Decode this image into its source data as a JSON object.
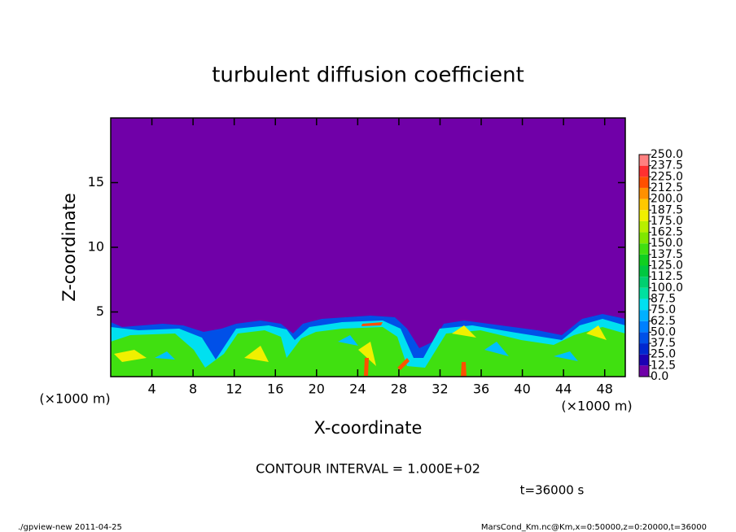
{
  "chart_data": {
    "type": "contour",
    "title": "turbulent diffusion coefficient",
    "x_label": "X-coordinate",
    "y_label": "Z-coordinate",
    "x_unit": "(×1000 m)",
    "y_unit": "(×1000 m)",
    "xlim": [
      0,
      50
    ],
    "xticks": [
      4,
      8,
      12,
      16,
      20,
      24,
      28,
      32,
      36,
      40,
      44,
      48
    ],
    "ylim": [
      0,
      20
    ],
    "yticks": [
      5,
      10,
      15
    ],
    "contour_interval": "CONTOUR INTERVAL = 1.000E+02",
    "time_label": "t=36000 s",
    "footer_left": "./gpview-new  2011-04-25",
    "footer_right": "MarsCond_Km.nc@Km,x=0:50000,z=0:20000,t=36000",
    "colorbar": {
      "levels": [
        {
          "value": 0,
          "label": "0.0"
        },
        {
          "value": 12.5,
          "label": "12.5"
        },
        {
          "value": 25,
          "label": "25.0"
        },
        {
          "value": 37.5,
          "label": "37.5"
        },
        {
          "value": 50,
          "label": "50.0"
        },
        {
          "value": 62.5,
          "label": "62.5"
        },
        {
          "value": 75,
          "label": "75.0"
        },
        {
          "value": 87.5,
          "label": "87.5"
        },
        {
          "value": 100,
          "label": "100.0"
        },
        {
          "value": 112.5,
          "label": "112.5"
        },
        {
          "value": 125,
          "label": "125.0"
        },
        {
          "value": 137.5,
          "label": "137.5"
        },
        {
          "value": 150,
          "label": "150.0"
        },
        {
          "value": 162.5,
          "label": "162.5"
        },
        {
          "value": 175,
          "label": "175.0"
        },
        {
          "value": 187.5,
          "label": "187.5"
        },
        {
          "value": 200,
          "label": "200.0"
        },
        {
          "value": 212.5,
          "label": "212.5"
        },
        {
          "value": 225,
          "label": "225.0"
        },
        {
          "value": 237.5,
          "label": "237.5"
        },
        {
          "value": 250,
          "label": "250.0"
        }
      ],
      "colors": [
        "#7000a8",
        "#1c00b4",
        "#0028d0",
        "#0050e8",
        "#0080ff",
        "#00b0ff",
        "#00e0f0",
        "#00e0a0",
        "#00d070",
        "#00c840",
        "#10d020",
        "#40e010",
        "#80e800",
        "#b8f000",
        "#f0f000",
        "#ffc800",
        "#ff9000",
        "#ff5000",
        "#ff3030",
        "#ff8080"
      ]
    }
  }
}
